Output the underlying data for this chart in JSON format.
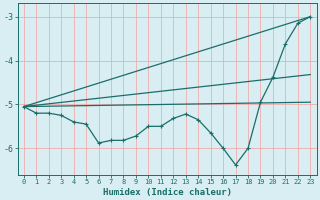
{
  "xlabel": "Humidex (Indice chaleur)",
  "background_color": "#d9eef2",
  "grid_color": "#f5a0a0",
  "line_color": "#1a6e6a",
  "xlim": [
    -0.5,
    23.5
  ],
  "ylim": [
    -6.6,
    -2.7
  ],
  "yticks": [
    -6,
    -5,
    -4,
    -3
  ],
  "xticks": [
    0,
    1,
    2,
    3,
    4,
    5,
    6,
    7,
    8,
    9,
    10,
    11,
    12,
    13,
    14,
    15,
    16,
    17,
    18,
    19,
    20,
    21,
    22,
    23
  ],
  "line1_x": [
    0,
    1,
    2,
    3,
    4,
    5,
    6,
    7,
    8,
    9,
    10,
    11,
    12,
    13,
    14,
    15,
    16,
    17,
    18,
    19,
    20,
    21,
    22,
    23
  ],
  "line1_y": [
    -5.05,
    -5.2,
    -5.2,
    -5.25,
    -5.4,
    -5.45,
    -5.88,
    -5.82,
    -5.82,
    -5.72,
    -5.5,
    -5.5,
    -5.32,
    -5.22,
    -5.35,
    -5.65,
    -6.0,
    -6.38,
    -6.0,
    -4.95,
    -4.38,
    -3.62,
    -3.15,
    -3.0
  ],
  "line2_x": [
    0,
    23
  ],
  "line2_y": [
    -5.05,
    -3.0
  ],
  "line3_x": [
    0,
    23
  ],
  "line3_y": [
    -5.05,
    -4.32
  ],
  "line4_x": [
    0,
    23
  ],
  "line4_y": [
    -5.05,
    -4.95
  ]
}
